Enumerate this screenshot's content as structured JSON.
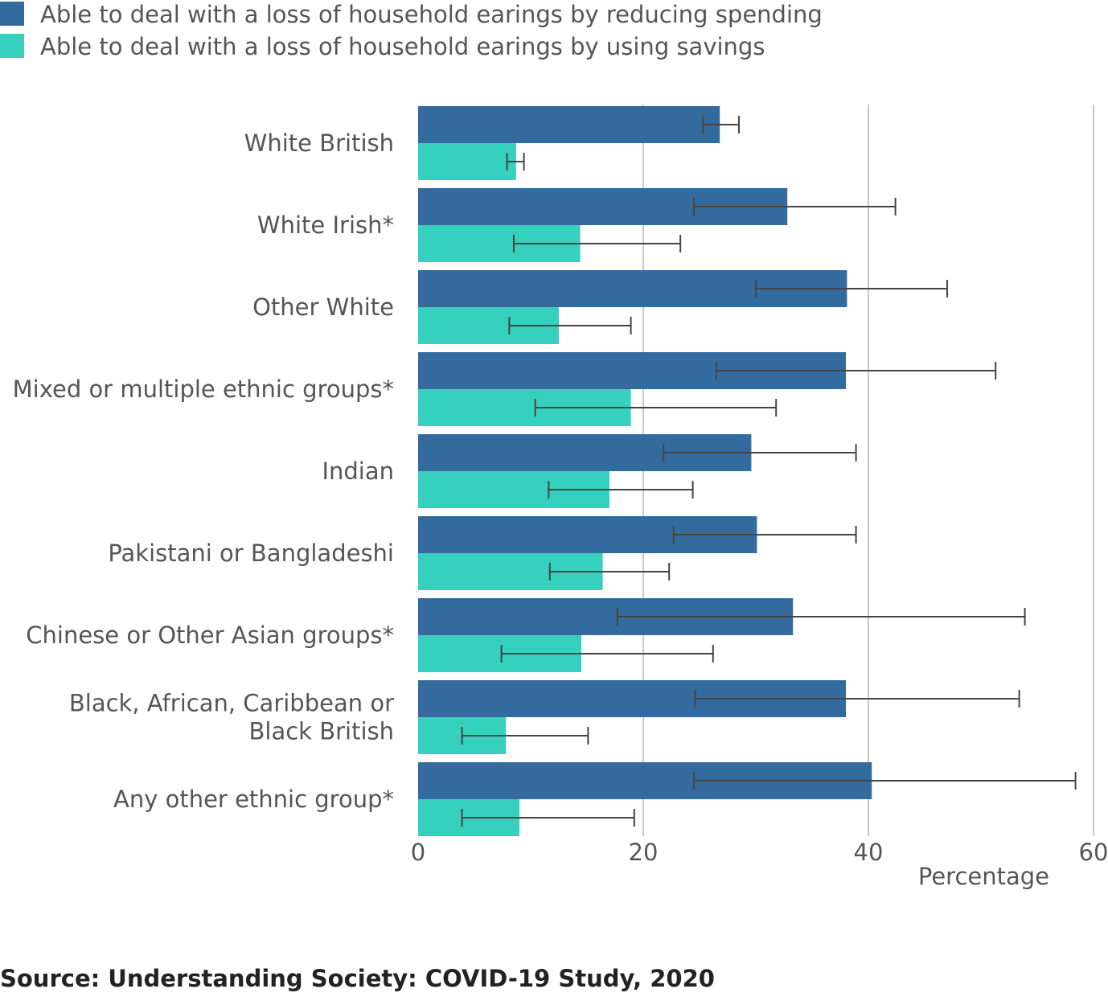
{
  "chart_data": {
    "type": "bar",
    "orientation": "horizontal",
    "categories": [
      [
        "White British"
      ],
      [
        "White Irish*"
      ],
      [
        "Other White"
      ],
      [
        "Mixed or multiple ethnic groups*"
      ],
      [
        "Indian"
      ],
      [
        "Pakistani or Bangladeshi"
      ],
      [
        "Chinese or Other Asian groups*"
      ],
      [
        "Black, African, Caribbean or",
        "Black British"
      ],
      [
        "Any other ethnic group*"
      ]
    ],
    "series": [
      {
        "name": "Able to deal with a loss of household earings by reducing spending",
        "color": "#336b9e",
        "values": [
          26.8,
          32.8,
          38.1,
          38.0,
          29.6,
          30.1,
          33.3,
          38.0,
          40.3
        ],
        "error_low": [
          25.3,
          24.5,
          30.0,
          26.5,
          21.8,
          22.7,
          17.7,
          24.6,
          24.5
        ],
        "error_high": [
          28.5,
          42.4,
          47.0,
          51.3,
          38.9,
          38.9,
          53.9,
          53.4,
          58.4
        ]
      },
      {
        "name": "Able to deal with a loss of household earings by using savings",
        "color": "#36d1be",
        "values": [
          8.7,
          14.4,
          12.5,
          18.9,
          17.0,
          16.4,
          14.5,
          7.8,
          9.0
        ],
        "error_low": [
          7.9,
          8.5,
          8.1,
          10.4,
          11.6,
          11.7,
          7.4,
          3.9,
          3.9
        ],
        "error_high": [
          9.4,
          23.3,
          18.9,
          31.8,
          24.4,
          22.3,
          26.2,
          15.1,
          19.2
        ]
      }
    ],
    "xlim": [
      0,
      60
    ],
    "xticks": [
      "0",
      "20",
      "40",
      "60"
    ],
    "xtick_values": [
      0,
      20,
      40,
      60
    ],
    "xlabel": "Percentage",
    "grid": "vertical",
    "legend": "top-left"
  },
  "source": "Source: Understanding Society: COVID-19 Study, 2020"
}
